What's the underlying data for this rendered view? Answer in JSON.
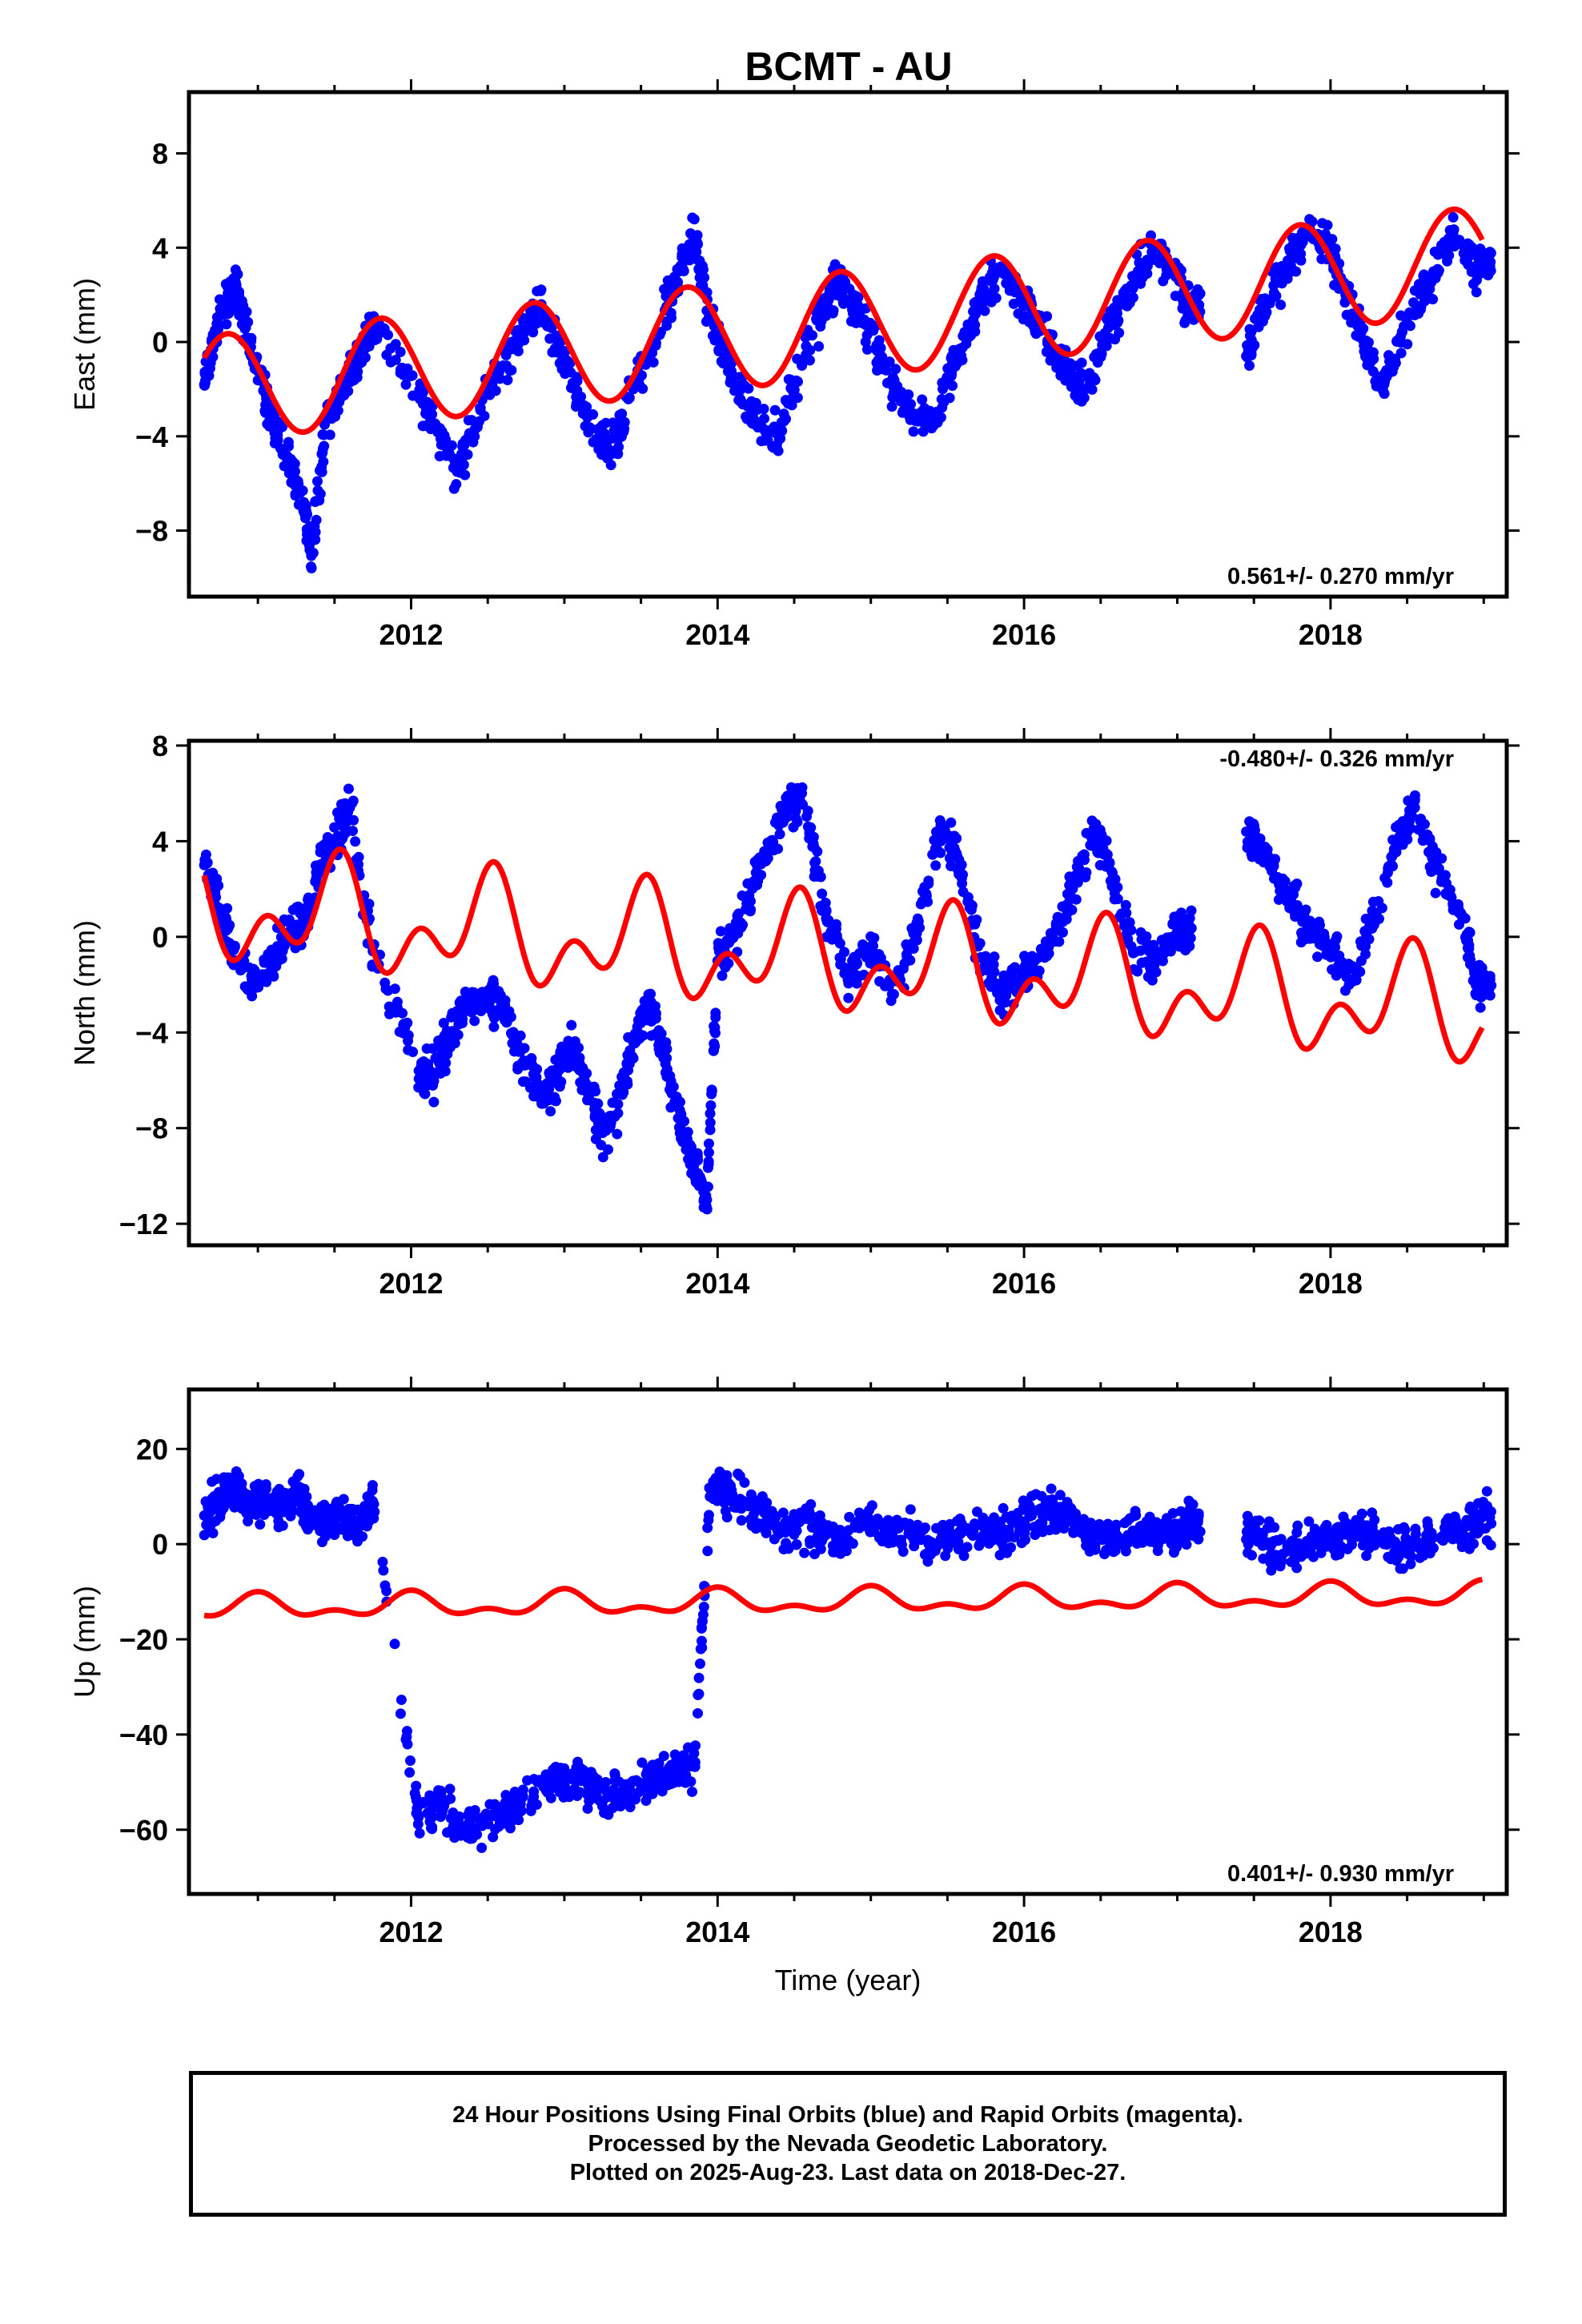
{
  "title": "BCMT - AU",
  "colors": {
    "observations": "#0000ff",
    "model": "#ff0000",
    "frame": "#000000"
  },
  "chart_data": [
    {
      "type": "scatter",
      "panel": "east",
      "ylabel": "East (mm)",
      "xlim": [
        2010.55,
        2019.15
      ],
      "ylim": [
        -10.8,
        10.6
      ],
      "yticks": [
        -8,
        -4,
        0,
        4,
        8
      ],
      "xticks": [
        2012,
        2014,
        2016,
        2018
      ],
      "rate_label": "0.561+/- 0.270 mm/yr",
      "rate_label_position": "bottom-right",
      "observations_series": [
        {
          "x": 2010.65,
          "y": -1.8
        },
        {
          "x": 2010.72,
          "y": 0.5
        },
        {
          "x": 2010.8,
          "y": 1.6
        },
        {
          "x": 2010.85,
          "y": 2.6
        },
        {
          "x": 2010.9,
          "y": 1.0
        },
        {
          "x": 2011.0,
          "y": -1.2
        },
        {
          "x": 2011.1,
          "y": -3.5
        },
        {
          "x": 2011.2,
          "y": -5.0
        },
        {
          "x": 2011.3,
          "y": -6.8
        },
        {
          "x": 2011.35,
          "y": -9.0
        },
        {
          "x": 2011.45,
          "y": -3.0
        },
        {
          "x": 2011.55,
          "y": -2.0
        },
        {
          "x": 2011.65,
          "y": -0.6
        },
        {
          "x": 2011.75,
          "y": 0.8
        },
        {
          "x": 2012.05,
          "y": -2.2
        },
        {
          "x": 2012.15,
          "y": -3.5
        },
        {
          "x": 2012.3,
          "y": -5.5
        },
        {
          "x": 2012.45,
          "y": -2.8
        },
        {
          "x": 2012.6,
          "y": -1.0
        },
        {
          "x": 2012.75,
          "y": 0.8
        },
        {
          "x": 2012.85,
          "y": 1.6
        },
        {
          "x": 2013.0,
          "y": -1.0
        },
        {
          "x": 2013.15,
          "y": -3.2
        },
        {
          "x": 2013.3,
          "y": -4.6
        },
        {
          "x": 2013.45,
          "y": -2.0
        },
        {
          "x": 2013.6,
          "y": 0.2
        },
        {
          "x": 2013.75,
          "y": 3.0
        },
        {
          "x": 2013.85,
          "y": 4.4
        },
        {
          "x": 2013.95,
          "y": 1.2
        },
        {
          "x": 2014.1,
          "y": -1.6
        },
        {
          "x": 2014.25,
          "y": -3.4
        },
        {
          "x": 2014.4,
          "y": -4.0
        },
        {
          "x": 2014.55,
          "y": -1.0
        },
        {
          "x": 2014.7,
          "y": 1.6
        },
        {
          "x": 2014.8,
          "y": 2.6
        },
        {
          "x": 2014.95,
          "y": 0.8
        },
        {
          "x": 2015.1,
          "y": -1.2
        },
        {
          "x": 2015.25,
          "y": -3.0
        },
        {
          "x": 2015.4,
          "y": -3.6
        },
        {
          "x": 2015.55,
          "y": -0.8
        },
        {
          "x": 2015.7,
          "y": 1.6
        },
        {
          "x": 2015.85,
          "y": 3.2
        },
        {
          "x": 2016.0,
          "y": 1.6
        },
        {
          "x": 2016.1,
          "y": 0.8
        },
        {
          "x": 2016.25,
          "y": -1.0
        },
        {
          "x": 2016.4,
          "y": -2.0
        },
        {
          "x": 2016.55,
          "y": 0.6
        },
        {
          "x": 2016.7,
          "y": 2.4
        },
        {
          "x": 2016.85,
          "y": 4.0
        },
        {
          "x": 2017.0,
          "y": 3.0
        },
        {
          "x": 2017.05,
          "y": 1.6
        },
        {
          "x": 2017.45,
          "y": -0.6
        },
        {
          "x": 2017.55,
          "y": 1.4
        },
        {
          "x": 2017.7,
          "y": 3.0
        },
        {
          "x": 2017.85,
          "y": 4.6
        },
        {
          "x": 2018.0,
          "y": 4.0
        },
        {
          "x": 2018.1,
          "y": 2.0
        },
        {
          "x": 2018.2,
          "y": 0.4
        },
        {
          "x": 2018.35,
          "y": -1.8
        },
        {
          "x": 2018.5,
          "y": 0.8
        },
        {
          "x": 2018.65,
          "y": 2.6
        },
        {
          "x": 2018.8,
          "y": 4.6
        },
        {
          "x": 2018.95,
          "y": 3.2
        }
      ],
      "model_curve": {
        "intercept": -2.0,
        "trend_ref_year": 2010.65,
        "trend_mm_per_yr": 0.66,
        "harmonics": [
          {
            "period_yr": 1.0,
            "amplitude": 2.25,
            "peak_year": 2010.8
          }
        ]
      }
    },
    {
      "type": "scatter",
      "panel": "north",
      "ylabel": "North (mm)",
      "xlim": [
        2010.55,
        2019.15
      ],
      "ylim": [
        -12.9,
        8.2
      ],
      "yticks": [
        -12,
        -8,
        -4,
        0,
        4,
        8
      ],
      "xticks": [
        2012,
        2014,
        2016,
        2018
      ],
      "rate_label": "-0.480+/- 0.326 mm/yr",
      "rate_label_position": "top-right",
      "observations_series": [
        {
          "x": 2010.65,
          "y": 3.0
        },
        {
          "x": 2010.75,
          "y": 1.2
        },
        {
          "x": 2010.85,
          "y": -1.0
        },
        {
          "x": 2011.0,
          "y": -2.0
        },
        {
          "x": 2011.1,
          "y": -1.0
        },
        {
          "x": 2011.2,
          "y": 0.2
        },
        {
          "x": 2011.3,
          "y": 0.6
        },
        {
          "x": 2011.4,
          "y": 3.0
        },
        {
          "x": 2011.5,
          "y": 4.0
        },
        {
          "x": 2011.6,
          "y": 5.4
        },
        {
          "x": 2011.75,
          "y": -0.6
        },
        {
          "x": 2012.05,
          "y": -5.6
        },
        {
          "x": 2012.15,
          "y": -5.8
        },
        {
          "x": 2012.25,
          "y": -4.0
        },
        {
          "x": 2012.35,
          "y": -3.0
        },
        {
          "x": 2012.5,
          "y": -2.4
        },
        {
          "x": 2012.6,
          "y": -2.8
        },
        {
          "x": 2012.7,
          "y": -4.8
        },
        {
          "x": 2012.85,
          "y": -6.6
        },
        {
          "x": 2012.95,
          "y": -6.0
        },
        {
          "x": 2013.05,
          "y": -4.6
        },
        {
          "x": 2013.15,
          "y": -6.4
        },
        {
          "x": 2013.25,
          "y": -8.2
        },
        {
          "x": 2013.35,
          "y": -7.0
        },
        {
          "x": 2013.45,
          "y": -4.4
        },
        {
          "x": 2013.55,
          "y": -2.6
        },
        {
          "x": 2013.65,
          "y": -5.0
        },
        {
          "x": 2013.75,
          "y": -7.6
        },
        {
          "x": 2013.85,
          "y": -9.4
        },
        {
          "x": 2013.93,
          "y": -11.0
        },
        {
          "x": 2014.0,
          "y": -1.0
        },
        {
          "x": 2014.15,
          "y": 0.6
        },
        {
          "x": 2014.3,
          "y": 3.2
        },
        {
          "x": 2014.45,
          "y": 5.6
        },
        {
          "x": 2014.55,
          "y": 6.0
        },
        {
          "x": 2014.7,
          "y": 1.2
        },
        {
          "x": 2014.85,
          "y": -1.8
        },
        {
          "x": 2015.0,
          "y": -0.4
        },
        {
          "x": 2015.15,
          "y": -2.4
        },
        {
          "x": 2015.3,
          "y": 0.4
        },
        {
          "x": 2015.45,
          "y": 4.4
        },
        {
          "x": 2015.55,
          "y": 3.6
        },
        {
          "x": 2015.7,
          "y": -0.4
        },
        {
          "x": 2015.85,
          "y": -2.2
        },
        {
          "x": 2016.0,
          "y": -1.6
        },
        {
          "x": 2016.15,
          "y": -0.8
        },
        {
          "x": 2016.3,
          "y": 1.6
        },
        {
          "x": 2016.45,
          "y": 4.4
        },
        {
          "x": 2016.55,
          "y": 3.0
        },
        {
          "x": 2016.7,
          "y": -0.4
        },
        {
          "x": 2016.85,
          "y": -1.2
        },
        {
          "x": 2017.0,
          "y": 0.2
        },
        {
          "x": 2017.45,
          "y": 4.4
        },
        {
          "x": 2017.55,
          "y": 3.8
        },
        {
          "x": 2017.7,
          "y": 2.0
        },
        {
          "x": 2017.85,
          "y": 0.4
        },
        {
          "x": 2018.0,
          "y": -0.6
        },
        {
          "x": 2018.15,
          "y": -1.8
        },
        {
          "x": 2018.3,
          "y": 1.0
        },
        {
          "x": 2018.45,
          "y": 4.2
        },
        {
          "x": 2018.55,
          "y": 5.4
        },
        {
          "x": 2018.7,
          "y": 2.8
        },
        {
          "x": 2018.85,
          "y": 1.0
        },
        {
          "x": 2018.95,
          "y": -2.0
        }
      ],
      "model_curve": {
        "intercept": 1.2,
        "trend_ref_year": 2010.65,
        "trend_mm_per_yr": -0.53,
        "harmonics": [
          {
            "period_yr": 1.0,
            "amplitude": 1.6,
            "peak_year": 2011.5
          },
          {
            "period_yr": 0.5,
            "amplitude": 1.4,
            "peak_year": 2010.55
          }
        ]
      }
    },
    {
      "type": "scatter",
      "panel": "up",
      "ylabel": "Up (mm)",
      "xlabel": "Time (year)",
      "xlim": [
        2010.55,
        2019.15
      ],
      "ylim": [
        -73.5,
        32.5
      ],
      "yticks": [
        -60,
        -40,
        -20,
        0,
        20
      ],
      "xticks": [
        2012,
        2014,
        2016,
        2018
      ],
      "rate_label": "0.401+/- 0.930 mm/yr",
      "rate_label_position": "bottom-right",
      "observations_series": [
        {
          "x": 2010.65,
          "y": 6
        },
        {
          "x": 2010.75,
          "y": 9
        },
        {
          "x": 2010.85,
          "y": 12
        },
        {
          "x": 2010.95,
          "y": 8
        },
        {
          "x": 2011.05,
          "y": 10
        },
        {
          "x": 2011.15,
          "y": 7
        },
        {
          "x": 2011.25,
          "y": 11
        },
        {
          "x": 2011.35,
          "y": 5
        },
        {
          "x": 2011.45,
          "y": 4
        },
        {
          "x": 2011.55,
          "y": 6
        },
        {
          "x": 2011.65,
          "y": 3
        },
        {
          "x": 2011.75,
          "y": 9
        },
        {
          "x": 2012.05,
          "y": -57
        },
        {
          "x": 2012.2,
          "y": -55
        },
        {
          "x": 2012.35,
          "y": -60
        },
        {
          "x": 2012.5,
          "y": -58
        },
        {
          "x": 2012.65,
          "y": -56
        },
        {
          "x": 2012.8,
          "y": -52
        },
        {
          "x": 2012.95,
          "y": -50
        },
        {
          "x": 2013.1,
          "y": -48
        },
        {
          "x": 2013.25,
          "y": -54
        },
        {
          "x": 2013.4,
          "y": -51
        },
        {
          "x": 2013.55,
          "y": -50
        },
        {
          "x": 2013.7,
          "y": -49
        },
        {
          "x": 2013.85,
          "y": -46
        },
        {
          "x": 2013.95,
          "y": 10
        },
        {
          "x": 2014.05,
          "y": 12
        },
        {
          "x": 2014.2,
          "y": 8
        },
        {
          "x": 2014.35,
          "y": 5
        },
        {
          "x": 2014.5,
          "y": 2
        },
        {
          "x": 2014.65,
          "y": 3
        },
        {
          "x": 2014.8,
          "y": 1
        },
        {
          "x": 2014.95,
          "y": 5
        },
        {
          "x": 2015.1,
          "y": 2
        },
        {
          "x": 2015.25,
          "y": 3
        },
        {
          "x": 2015.4,
          "y": 0
        },
        {
          "x": 2015.55,
          "y": 2
        },
        {
          "x": 2015.75,
          "y": 2
        },
        {
          "x": 2015.9,
          "y": 3
        },
        {
          "x": 2016.05,
          "y": 6
        },
        {
          "x": 2016.2,
          "y": 8
        },
        {
          "x": 2016.35,
          "y": 4
        },
        {
          "x": 2016.5,
          "y": 2
        },
        {
          "x": 2016.65,
          "y": 1
        },
        {
          "x": 2016.8,
          "y": 3
        },
        {
          "x": 2016.95,
          "y": 2
        },
        {
          "x": 2017.05,
          "y": 4
        },
        {
          "x": 2017.45,
          "y": 1
        },
        {
          "x": 2017.6,
          "y": 0
        },
        {
          "x": 2017.75,
          "y": -1
        },
        {
          "x": 2017.9,
          "y": 2
        },
        {
          "x": 2018.05,
          "y": 1
        },
        {
          "x": 2018.2,
          "y": 3
        },
        {
          "x": 2018.35,
          "y": 0
        },
        {
          "x": 2018.5,
          "y": -2
        },
        {
          "x": 2018.65,
          "y": 1
        },
        {
          "x": 2018.8,
          "y": 2
        },
        {
          "x": 2018.95,
          "y": 5
        }
      ],
      "model_curve": {
        "intercept": -13.4,
        "trend_ref_year": 2010.65,
        "trend_mm_per_yr": 0.32,
        "harmonics": [
          {
            "period_yr": 1.0,
            "amplitude": 2.0,
            "peak_year": 2011.0
          },
          {
            "period_yr": 0.5,
            "amplitude": 1.3,
            "peak_year": 2011.0
          }
        ]
      }
    }
  ],
  "footer": {
    "line1": "24 Hour Positions Using Final Orbits (blue) and Rapid Orbits (magenta).",
    "line2": "Processed by the Nevada Geodetic Laboratory.",
    "line3": "Plotted on 2025-Aug-23. Last data on 2018-Dec-27."
  }
}
